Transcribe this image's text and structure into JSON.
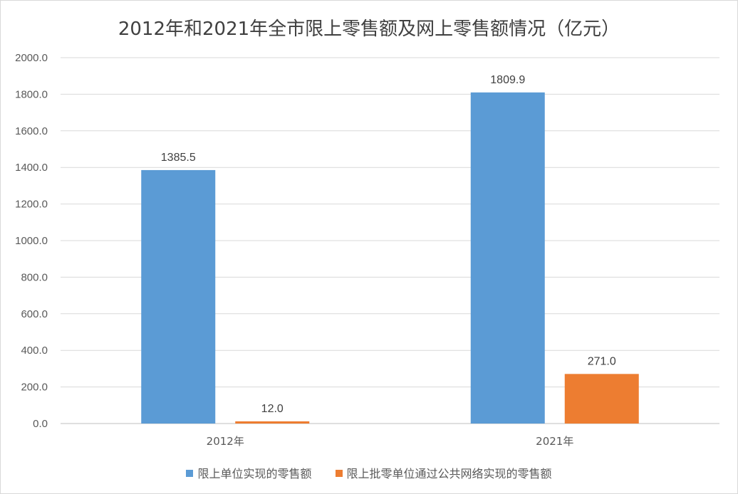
{
  "chart_data": {
    "type": "bar",
    "title": "2012年和2021年全市限上零售额及网上零售额情况（亿元）",
    "categories": [
      "2012年",
      "2021年"
    ],
    "series": [
      {
        "name": "限上单位实现的零售额",
        "values": [
          1385.5,
          1809.9
        ],
        "labels": [
          "1385.5",
          "1809.9"
        ],
        "color": "#5b9bd5"
      },
      {
        "name": "限上批零单位通过公共网络实现的零售额",
        "values": [
          12.0,
          271.0
        ],
        "labels": [
          "12.0",
          "271.0"
        ],
        "color": "#ed7d31"
      }
    ],
    "ylim": [
      0,
      2000
    ],
    "yticks": [
      "0.0",
      "200.0",
      "400.0",
      "600.0",
      "800.0",
      "1000.0",
      "1200.0",
      "1400.0",
      "1600.0",
      "1800.0",
      "2000.0"
    ],
    "xlabel": "",
    "ylabel": "",
    "grid": true,
    "legend": "bottom"
  }
}
